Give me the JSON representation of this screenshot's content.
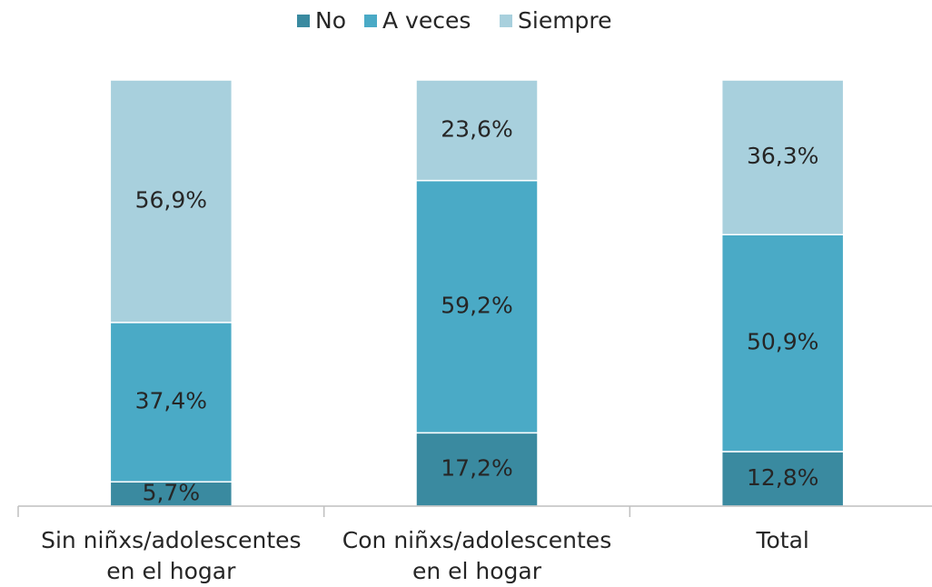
{
  "chart_data": {
    "type": "stacked_bar",
    "categories": [
      [
        "Sin niñxs/adolescentes",
        "en el hogar"
      ],
      [
        "Con niñxs/adolescentes",
        "en el hogar"
      ],
      [
        "Total"
      ]
    ],
    "series": [
      {
        "name": "No",
        "color": "#3a8aa0",
        "values": [
          5.7,
          17.2,
          12.8
        ],
        "value_labels": [
          "5,7%",
          "17,2%",
          "12,8%"
        ]
      },
      {
        "name": "A veces",
        "color": "#4aaac6",
        "values": [
          37.4,
          59.2,
          50.9
        ],
        "value_labels": [
          "37,4%",
          "59,2%",
          "50,9%"
        ]
      },
      {
        "name": "Siempre",
        "color": "#a8d0dd",
        "values": [
          56.9,
          23.6,
          36.3
        ],
        "value_labels": [
          "56,9%",
          "23,6%",
          "36,3%"
        ]
      }
    ],
    "ylim": [
      0,
      100
    ],
    "legend": "top"
  }
}
